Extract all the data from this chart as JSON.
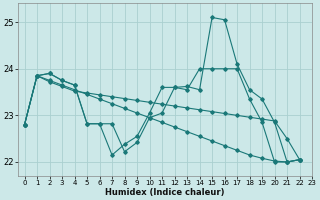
{
  "xlabel": "Humidex (Indice chaleur)",
  "xlim": [
    -0.5,
    23
  ],
  "ylim": [
    21.7,
    25.4
  ],
  "yticks": [
    22,
    23,
    24,
    25
  ],
  "xticks": [
    0,
    1,
    2,
    3,
    4,
    5,
    6,
    7,
    8,
    9,
    10,
    11,
    12,
    13,
    14,
    15,
    16,
    17,
    18,
    19,
    20,
    21,
    22,
    23
  ],
  "xticklabels": [
    "0",
    "1",
    "2",
    "3",
    "4",
    "5",
    "6",
    "7",
    "8",
    "9",
    "10",
    "11",
    "12",
    "13",
    "14",
    "15",
    "16",
    "17",
    "18",
    "19",
    "20",
    "21",
    "22",
    "23"
  ],
  "bg_color": "#cce8e8",
  "grid_color": "#aad0d0",
  "line_color": "#1a7878",
  "lines": [
    {
      "x": [
        0,
        1,
        2,
        3,
        4,
        5,
        6,
        7,
        8,
        9,
        10,
        11,
        12,
        13,
        14,
        15,
        16,
        17,
        18,
        19,
        20,
        21,
        22
      ],
      "y": [
        22.8,
        23.85,
        23.9,
        23.75,
        23.65,
        22.82,
        22.82,
        22.82,
        22.22,
        22.42,
        22.95,
        23.05,
        23.6,
        23.62,
        23.55,
        25.1,
        25.05,
        24.1,
        23.55,
        23.35,
        22.85,
        22.0,
        22.05
      ]
    },
    {
      "x": [
        0,
        1,
        2,
        3,
        4,
        5,
        6,
        7,
        8,
        9,
        10,
        11,
        12,
        13,
        14,
        15,
        16,
        17,
        18,
        19,
        20,
        21,
        22
      ],
      "y": [
        22.8,
        23.85,
        23.9,
        23.75,
        23.65,
        22.82,
        22.82,
        22.15,
        22.38,
        22.55,
        23.05,
        23.6,
        23.6,
        23.55,
        24.0,
        24.0,
        24.0,
        24.0,
        23.35,
        22.85,
        22.0,
        22.0,
        22.05
      ]
    },
    {
      "x": [
        0,
        1,
        2,
        3,
        4,
        5,
        6,
        7,
        8,
        9,
        10,
        11,
        12,
        13,
        14,
        15,
        16,
        17,
        18,
        19,
        20,
        21,
        22
      ],
      "y": [
        22.8,
        23.85,
        23.72,
        23.62,
        23.52,
        23.48,
        23.44,
        23.4,
        23.36,
        23.32,
        23.28,
        23.24,
        23.2,
        23.16,
        23.12,
        23.08,
        23.04,
        23.0,
        22.96,
        22.92,
        22.88,
        22.5,
        22.05
      ]
    },
    {
      "x": [
        0,
        1,
        2,
        3,
        4,
        5,
        6,
        7,
        8,
        9,
        10,
        11,
        12,
        13,
        14,
        15,
        16,
        17,
        18,
        19,
        20,
        21,
        22
      ],
      "y": [
        22.8,
        23.85,
        23.75,
        23.65,
        23.55,
        23.45,
        23.35,
        23.25,
        23.15,
        23.05,
        22.95,
        22.85,
        22.75,
        22.65,
        22.55,
        22.45,
        22.35,
        22.25,
        22.15,
        22.08,
        22.02,
        22.0,
        22.05
      ]
    }
  ]
}
